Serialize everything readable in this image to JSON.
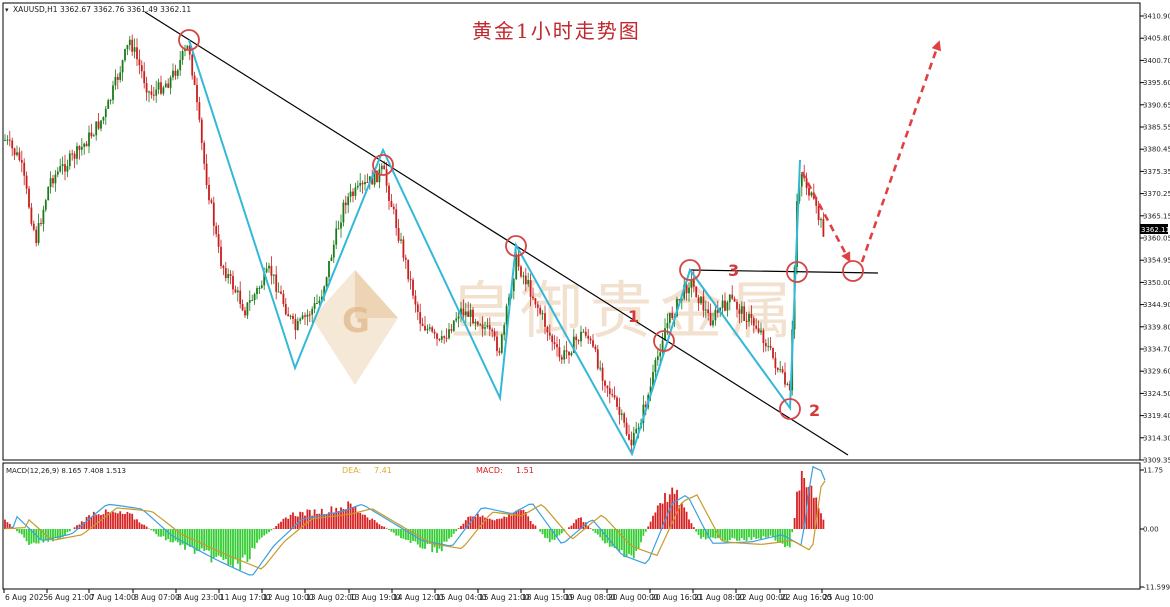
{
  "header": {
    "symbol_info": "XAUUSD,H1  3362.67 3362.76 3361.49 3362.11",
    "title": "黄金1小时走势图"
  },
  "watermark": {
    "text": "皇御贵金属",
    "logo_letter": "G"
  },
  "price_axis": {
    "ticks": [
      "3410.90",
      "3405.80",
      "3400.70",
      "3395.60",
      "3390.65",
      "3385.55",
      "3380.45",
      "3375.35",
      "3370.25",
      "3365.15",
      "3360.05",
      "3354.95",
      "3350.00",
      "3344.90",
      "3339.80",
      "3334.70",
      "3329.60",
      "3324.50",
      "3319.40",
      "3314.30",
      "3309.35"
    ],
    "current": "3362.11"
  },
  "macd": {
    "label": "MACD(12,26,9) 8.165 7.408 1.513",
    "dea_label": "DEA:",
    "dea_value": "7.41",
    "macd_label": "MACD:",
    "macd_value": "1.51",
    "ticks": [
      "11.75",
      "0.00",
      "-11.599"
    ]
  },
  "time_axis": [
    "6 Aug 2025",
    "6 Aug 21:00",
    "7 Aug 14:00",
    "8 Aug 07:00",
    "8 Aug 23:00",
    "11 Aug 17:00",
    "12 Aug 10:00",
    "13 Aug 02:00",
    "13 Aug 19:00",
    "14 Aug 12:00",
    "15 Aug 04:00",
    "15 Aug 21:00",
    "18 Aug 15:00",
    "19 Aug 08:00",
    "20 Aug 00:00",
    "20 Aug 16:00",
    "21 Aug 08:00",
    "22 Aug 00:00",
    "22 Aug 16:00",
    "25 Aug 10:00"
  ],
  "annotations": {
    "n1": "1",
    "n2": "2",
    "n3": "3"
  },
  "colors": {
    "bull": "#1a7a1a",
    "bear": "#c81e1e",
    "zigzag": "#33b8d8",
    "trend": "#000000",
    "circle": "#d64545",
    "arrow": "#e04040",
    "macd_pos": "#d82020",
    "macd_neg": "#33cc33",
    "dif": "#3aa0e0",
    "dea_line": "#c89a2a"
  },
  "chart_data": {
    "type": "candlestick",
    "title": "黄金1小时走势图",
    "symbol": "XAUUSD",
    "timeframe": "H1",
    "ylim": [
      3309.35,
      3410.9
    ],
    "last_price": 3362.11,
    "swing_points": [
      {
        "time": "8 Aug 23:00",
        "price": 3405.0
      },
      {
        "time": "11 Aug 17:00",
        "price": 3331.0
      },
      {
        "time": "13 Aug 19:00",
        "price": 3375.0
      },
      {
        "time": "15 Aug 21:00",
        "price": 3324.0
      },
      {
        "time": "18 Aug 15:00",
        "price": 3358.0
      },
      {
        "time": "20 Aug 00:00",
        "price": 3311.0
      },
      {
        "time": "20 Aug 16:00",
        "price": 3353.0
      },
      {
        "time": "22 Aug 16:00",
        "price": 3321.0
      },
      {
        "time": "22 Aug 16:00",
        "price": 3378.0
      }
    ],
    "resistance_level": 3353.0,
    "projection": [
      3352.5,
      3404.0
    ],
    "macd": {
      "fast": 12,
      "slow": 26,
      "signal": 9,
      "macd": 8.165,
      "signal_value": 7.408,
      "hist": 1.513,
      "ylim": [
        -11.599,
        11.75
      ]
    }
  }
}
